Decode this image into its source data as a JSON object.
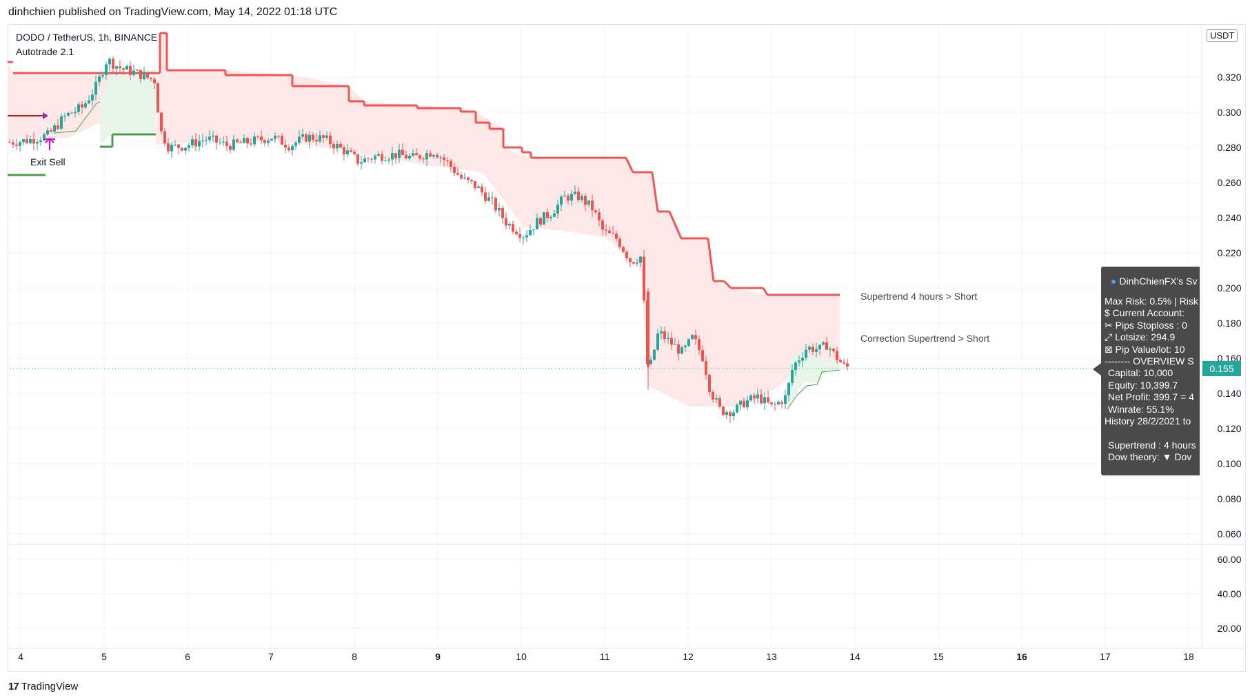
{
  "header": {
    "published_text": "dinhchien published on TradingView.com, May 14, 2022 01:18 UTC"
  },
  "symbol": {
    "title": "DODO / TetherUS, 1h, BINANCE",
    "indicator": "Autotrade 2.1"
  },
  "price_axis": {
    "currency_badge": "USDT",
    "labels": [
      "0.320",
      "0.300",
      "0.280",
      "0.260",
      "0.240",
      "0.220",
      "0.200",
      "0.180",
      "0.160",
      "0.140",
      "0.120",
      "0.100",
      "0.080",
      "0.060"
    ],
    "last_price": "0.155",
    "colors": {
      "last_price": "#26a69a"
    }
  },
  "sub_axis": {
    "labels": [
      "60.00",
      "40.00",
      "20.00"
    ]
  },
  "time_axis": {
    "labels": [
      "4",
      "5",
      "6",
      "7",
      "8",
      "9",
      "10",
      "11",
      "12",
      "13",
      "14",
      "15",
      "16",
      "17",
      "18"
    ],
    "bold": [
      "9",
      "16"
    ]
  },
  "annotations": {
    "exit_sell": "Exit Sell",
    "supertrend_4h": "Supertrend 4 hours > Short",
    "correction_supertrend": "Correction Supertrend  > Short"
  },
  "overview_panel": {
    "title": "DinhChienFX's Sv",
    "title_icon": "globe-icon",
    "rows": [
      "Max Risk: 0.5% | Risk",
      "$ Current Account:",
      "✂ Pips Stoploss : 0",
      "⤢ Lotsize: 294.9",
      "⊠ Pip Value/lot: 10",
      "-------- OVERVIEW S",
      "Capital: 10,000",
      "Equity: 10,399.7",
      "Net Profit: 399.7 = 4",
      "Winrate: 55.1%",
      "History 28/2/2021 to",
      "",
      "Supertrend : 4 hours",
      "Dow theory:  ▼ Dov"
    ],
    "colors": {
      "background": "#4a4a4a",
      "text": "#ffffff",
      "dow_arrow": "#ef5350"
    }
  },
  "colors": {
    "bull": "#26a69a",
    "bear": "#ef5350",
    "supertrend_down": "#f05454",
    "supertrend_up": "#43a047",
    "fill_down": "#fde8e8",
    "fill_up": "#e8f5e9",
    "exit_marker": "#e000e0"
  },
  "footer": {
    "brand": "TradingView"
  }
}
